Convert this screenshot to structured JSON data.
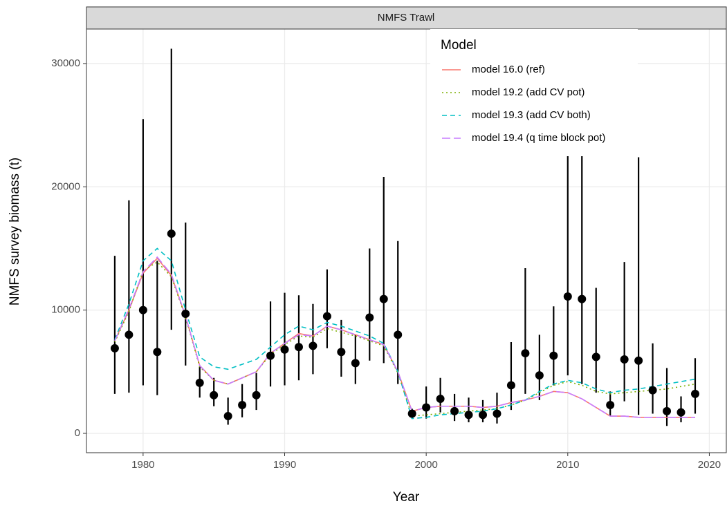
{
  "chart_data": {
    "type": "line",
    "strip": "NMFS Trawl",
    "xlabel": "Year",
    "ylabel": "NMFS survey biomass (t)",
    "xlim": [
      1976,
      2021.2
    ],
    "ylim": [
      -1570,
      32800
    ],
    "xticks": [
      1980,
      1990,
      2000,
      2010,
      2020
    ],
    "yticks": [
      0,
      10000,
      20000,
      30000
    ],
    "grid": true,
    "legend_title": "Model",
    "x": [
      1978,
      1979,
      1980,
      1981,
      1982,
      1983,
      1984,
      1985,
      1986,
      1987,
      1988,
      1989,
      1990,
      1991,
      1992,
      1993,
      1994,
      1995,
      1996,
      1997,
      1998,
      1999,
      2000,
      2001,
      2002,
      2003,
      2004,
      2005,
      2006,
      2007,
      2008,
      2009,
      2010,
      2011,
      2012,
      2013,
      2014,
      2015,
      2016,
      2017,
      2018,
      2019
    ],
    "observed": {
      "color": "#000000",
      "values": [
        6900,
        8000,
        10000,
        6600,
        16200,
        9700,
        4100,
        3100,
        1400,
        2300,
        3100,
        6300,
        6800,
        7000,
        7100,
        9500,
        6600,
        5700,
        9400,
        10900,
        8000,
        1600,
        2100,
        2800,
        1800,
        1500,
        1500,
        1600,
        3900,
        6500,
        4700,
        6300,
        11100,
        10900,
        6200,
        2300,
        6000,
        5900,
        3500,
        1800,
        1700,
        3200
      ],
      "lower": [
        3200,
        3300,
        3900,
        3100,
        8400,
        5500,
        2900,
        2200,
        700,
        1300,
        1900,
        3800,
        3900,
        4300,
        4800,
        6900,
        4600,
        4000,
        5900,
        5700,
        4000,
        1200,
        1200,
        1700,
        1000,
        900,
        900,
        800,
        1900,
        3200,
        2700,
        3900,
        4700,
        4000,
        3300,
        1400,
        2600,
        1500,
        1600,
        600,
        900,
        1600
      ],
      "upper": [
        14400,
        18900,
        25500,
        14000,
        31200,
        17100,
        5400,
        4500,
        2900,
        4000,
        4900,
        10700,
        11400,
        11200,
        10500,
        13300,
        9200,
        8000,
        15000,
        20800,
        15600,
        2000,
        3800,
        4500,
        3200,
        2900,
        2700,
        3300,
        7400,
        13400,
        8000,
        10300,
        26000,
        30000,
        11800,
        3400,
        13900,
        22400,
        7300,
        5300,
        3000,
        6100
      ]
    },
    "series": [
      {
        "name": "model 16.0 (ref)",
        "color": "#F8766D",
        "linetype": "solid",
        "values": [
          7500,
          10000,
          13000,
          14200,
          12800,
          9500,
          5500,
          4300,
          4000,
          4500,
          5000,
          6500,
          7300,
          8100,
          7900,
          8700,
          8400,
          8000,
          7600,
          7200,
          5000,
          1800,
          2100,
          2200,
          2200,
          2200,
          2100,
          2200,
          2500,
          2700,
          3000,
          3400,
          3300,
          2800,
          2100,
          1400,
          1400,
          1300,
          1300,
          1300,
          1300,
          1300
        ]
      },
      {
        "name": "model 19.2 (add CV pot)",
        "color": "#7CAE00",
        "linetype": "dotted",
        "values": [
          7400,
          9900,
          13200,
          13900,
          12700,
          9400,
          5400,
          4300,
          4000,
          4500,
          5000,
          6400,
          7200,
          7900,
          7800,
          8500,
          8200,
          7900,
          7500,
          7100,
          4900,
          1400,
          1500,
          1600,
          1700,
          1800,
          1900,
          2000,
          2300,
          2700,
          3300,
          3900,
          4200,
          3900,
          3400,
          3200,
          3300,
          3400,
          3500,
          3600,
          3800,
          4000
        ]
      },
      {
        "name": "model 19.3 (add CV both)",
        "color": "#00BFC4",
        "linetype": "dashed",
        "values": [
          7600,
          10500,
          14000,
          15000,
          14000,
          10000,
          6200,
          5400,
          5200,
          5600,
          6000,
          7000,
          8000,
          8700,
          8400,
          9000,
          8700,
          8300,
          7900,
          7300,
          5000,
          1200,
          1300,
          1500,
          1600,
          1700,
          1800,
          2000,
          2300,
          2700,
          3400,
          4000,
          4300,
          4100,
          3600,
          3300,
          3500,
          3600,
          3800,
          4000,
          4200,
          4400
        ]
      },
      {
        "name": "model 19.4 (q time block pot)",
        "color": "#C77CFF",
        "linetype": "longdash",
        "values": [
          7500,
          10100,
          13100,
          14300,
          12900,
          9500,
          5500,
          4300,
          4000,
          4500,
          5000,
          6500,
          7300,
          8000,
          7900,
          8700,
          8400,
          8000,
          7600,
          7200,
          5000,
          1800,
          2100,
          2200,
          2200,
          2200,
          2100,
          2200,
          2500,
          2700,
          3000,
          3400,
          3300,
          2800,
          2100,
          1400,
          1400,
          1300,
          1300,
          1300,
          1300,
          1300
        ]
      }
    ]
  }
}
